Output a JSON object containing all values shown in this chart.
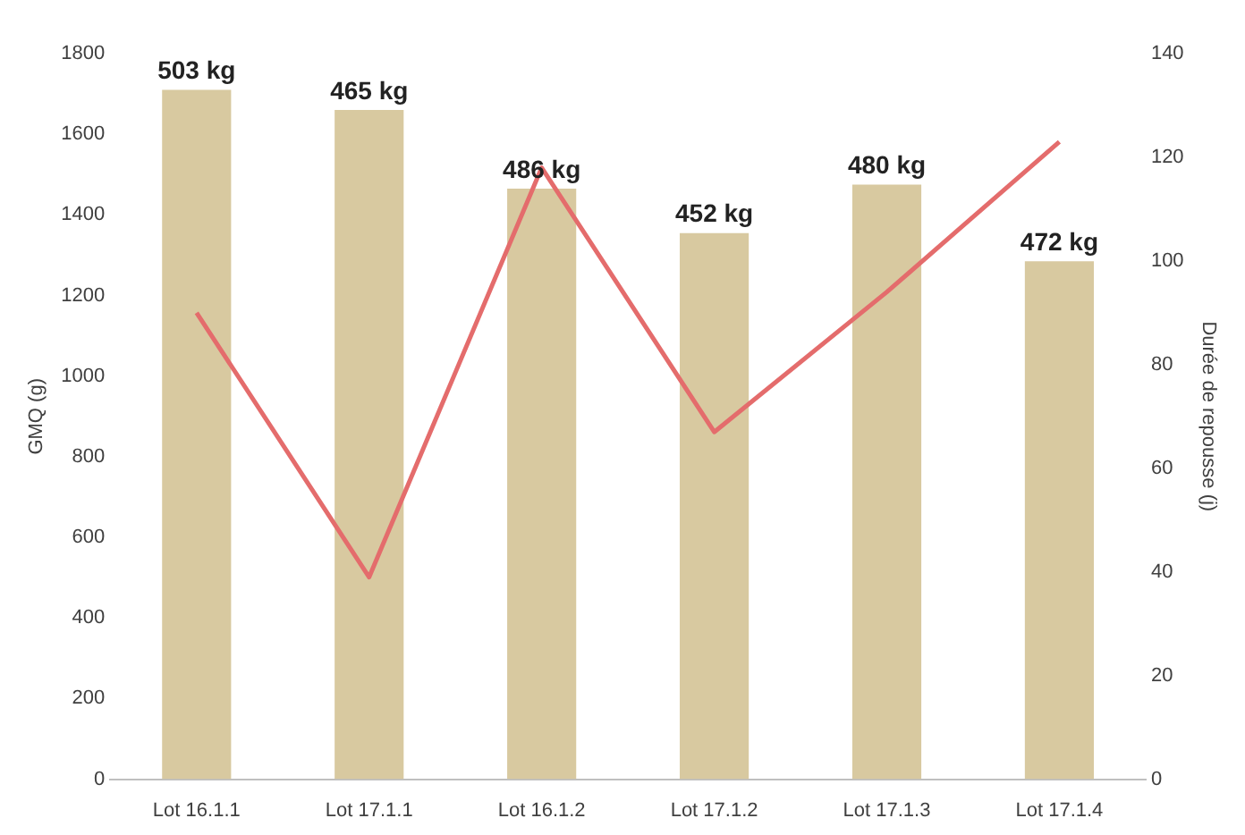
{
  "chart_data": {
    "type": "bar",
    "categories": [
      "Lot 16.1.1",
      "Lot 17.1.1",
      "Lot 16.1.2",
      "Lot 17.1.2",
      "Lot 17.1.3",
      "Lot 17.1.4"
    ],
    "ylabel": "GMQ (g)",
    "y2label": "Durée de repousse (j)",
    "ylim": [
      0,
      1800
    ],
    "yticks": [
      0,
      200,
      400,
      600,
      800,
      1000,
      1200,
      1400,
      1600,
      1800
    ],
    "y2lim": [
      0,
      140
    ],
    "y2ticks": [
      0,
      20,
      40,
      60,
      80,
      100,
      120,
      140
    ],
    "series": [
      {
        "color": "#d8c9a0",
        "values": [
          1710,
          1660,
          1465,
          1355,
          1475,
          1285
        ]
      },
      {
        "type": "line",
        "color": "#e46c6c",
        "axis": "y2",
        "values": [
          90,
          39,
          118,
          67,
          94,
          123
        ]
      }
    ],
    "annotations": [
      {
        "text": "503 kg",
        "x": "Lot 16.1.1",
        "y": 1710
      },
      {
        "text": "465 kg",
        "x": "Lot 17.1.1",
        "y": 1660
      },
      {
        "text": "486 kg",
        "x": "Lot 16.1.2",
        "y": 1465
      },
      {
        "text": "452 kg",
        "x": "Lot 17.1.2",
        "y": 1355
      },
      {
        "text": "480 kg",
        "x": "Lot 17.1.3",
        "y": 1475
      },
      {
        "text": "472 kg",
        "x": "Lot 17.1.4",
        "y": 1285
      }
    ],
    "grid": false,
    "legend": false
  }
}
